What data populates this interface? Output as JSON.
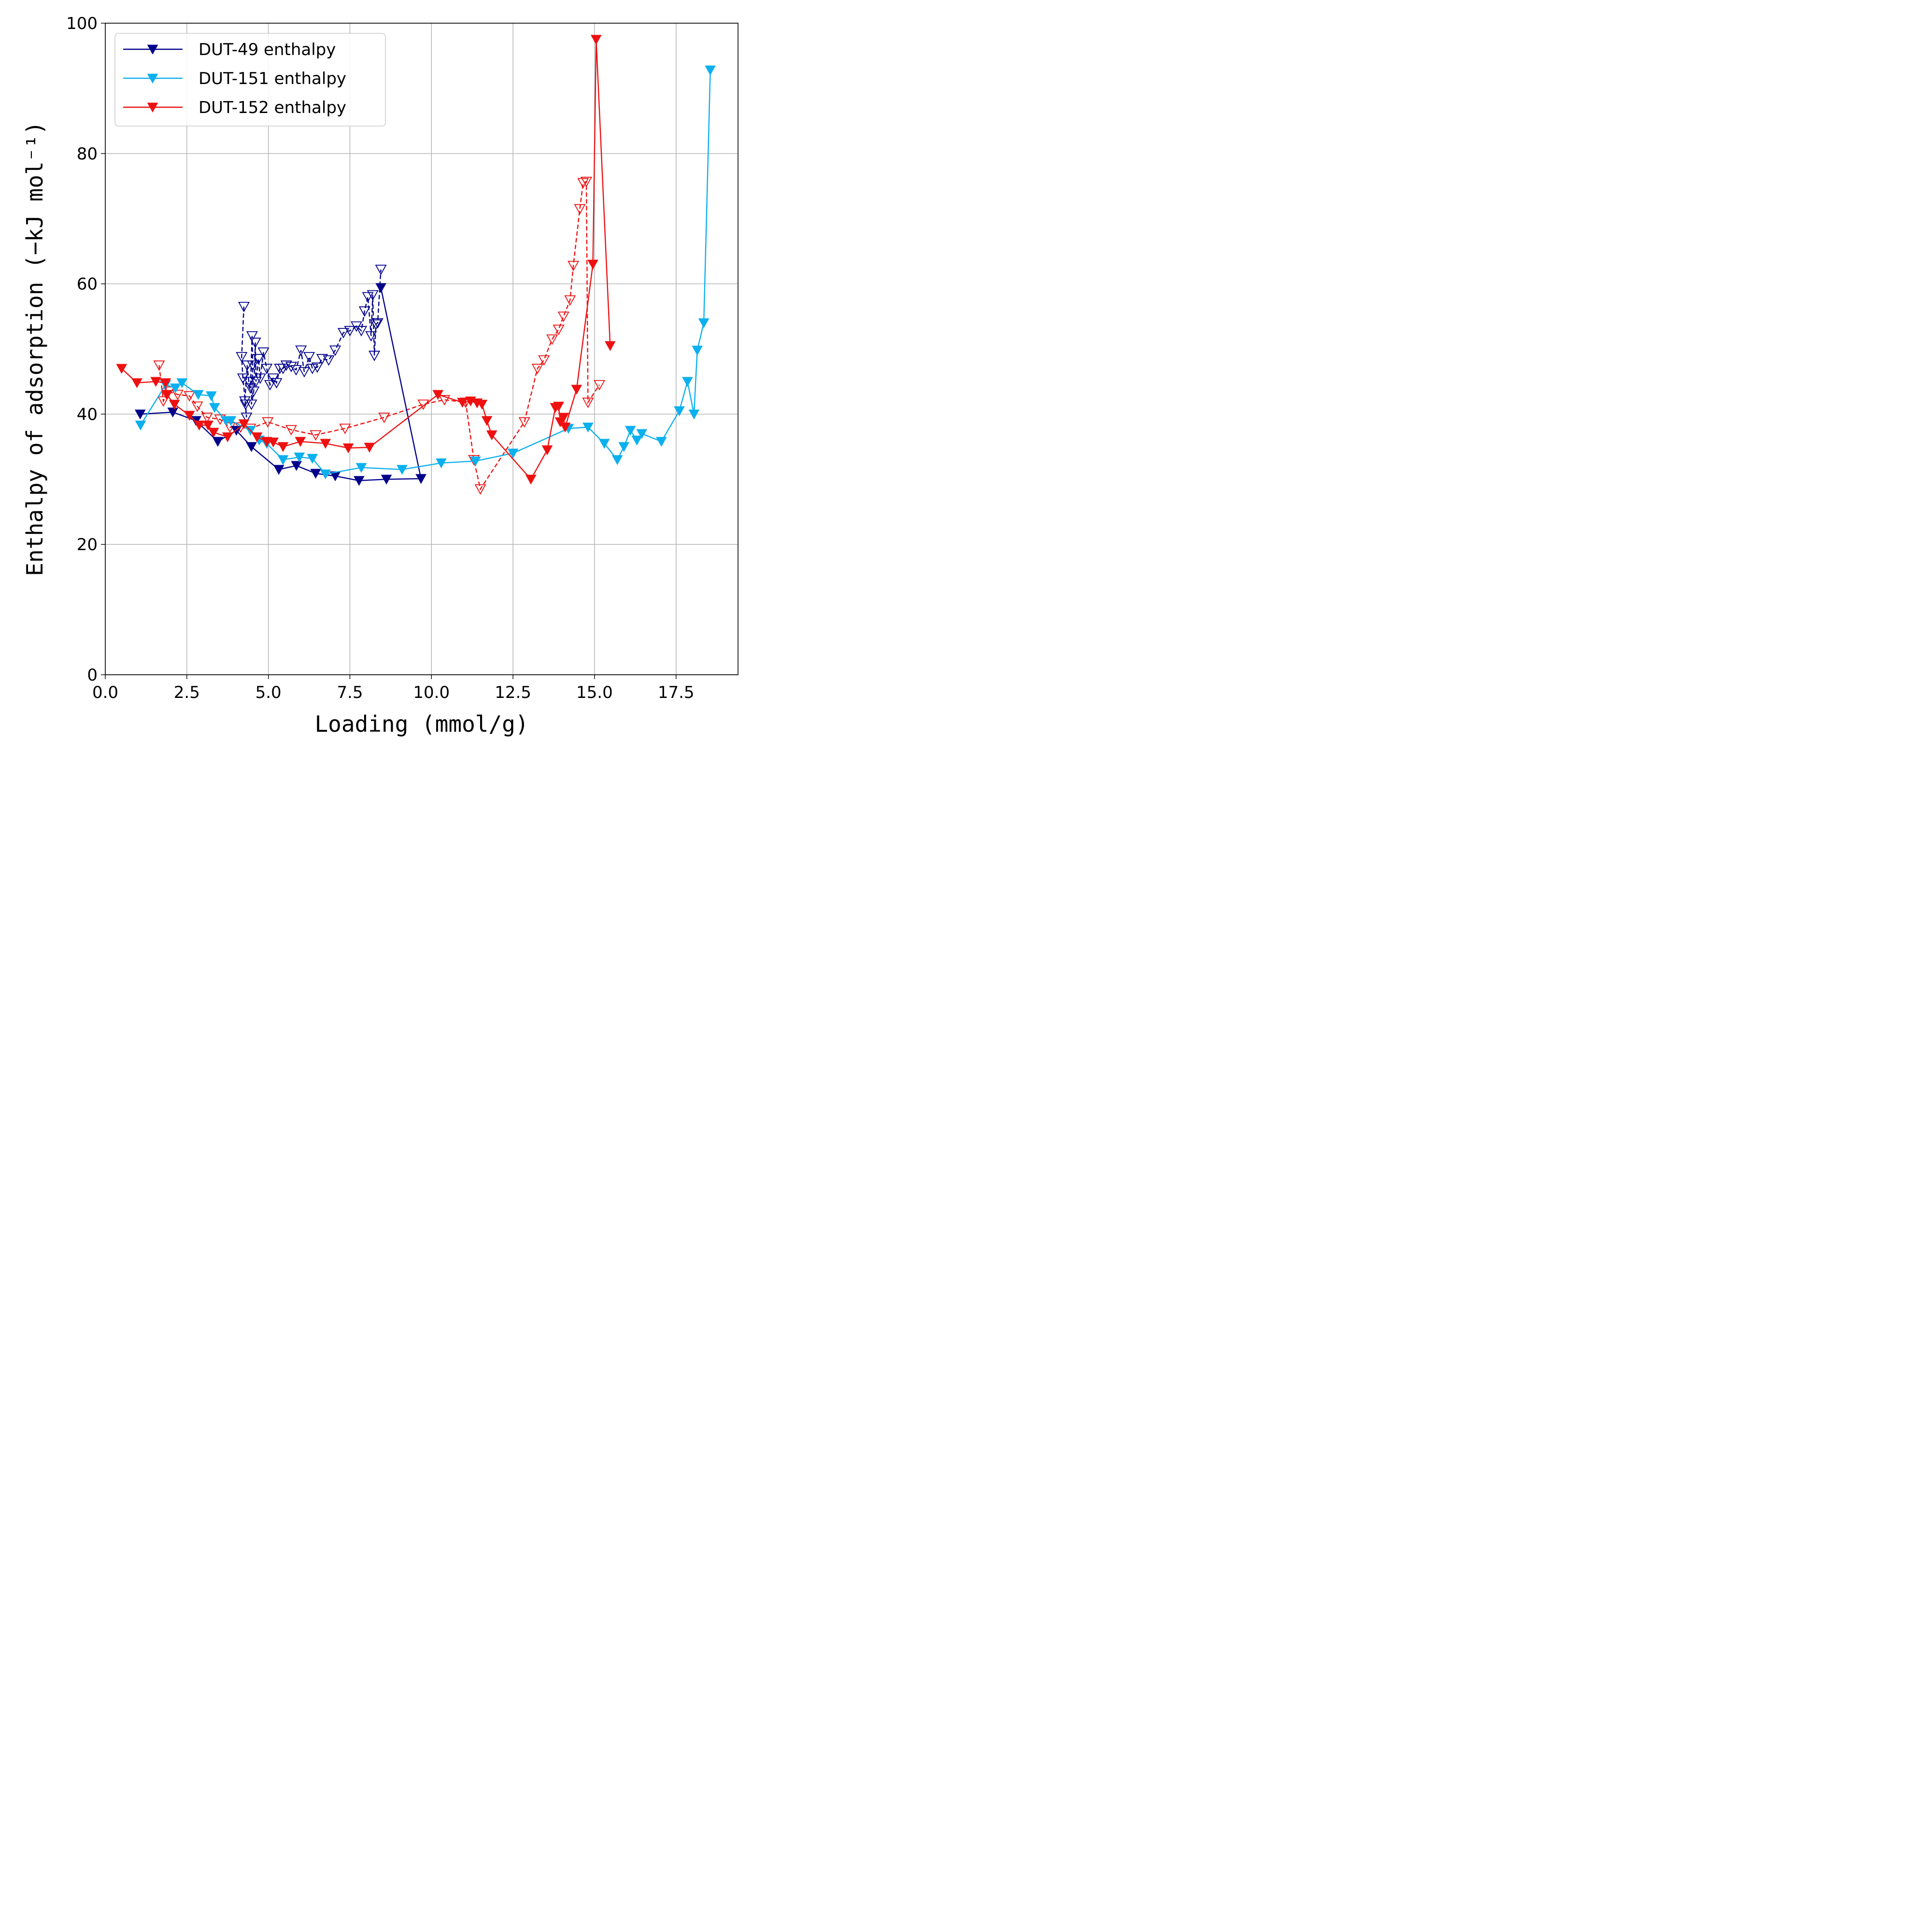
{
  "chart_data": {
    "type": "line",
    "xlabel": "Loading (mmol/g)",
    "ylabel": "Enthalpy of adsorption (−kJ mol⁻¹)",
    "xlim": [
      0,
      19.4
    ],
    "ylim": [
      0,
      100
    ],
    "xticks": [
      "0.0",
      "2.5",
      "5.0",
      "7.5",
      "10.0",
      "12.5",
      "15.0",
      "17.5"
    ],
    "yticks": [
      "0",
      "20",
      "40",
      "60",
      "80",
      "100"
    ],
    "grid": true,
    "legend_position": "top-left",
    "series": [
      {
        "name": "DUT-49 enthalpy",
        "color": "#00008b",
        "marker": "filled-down-triangle",
        "linestyle": "solid",
        "x": [
          1.07,
          2.07,
          2.78,
          3.45,
          4.02,
          4.48,
          5.32,
          5.86,
          6.45,
          7.05,
          7.78,
          8.62,
          9.68,
          8.45
        ],
        "y": [
          40.0,
          40.3,
          39.0,
          35.8,
          37.5,
          35.0,
          31.5,
          32.1,
          30.9,
          30.5,
          29.8,
          30.0,
          30.1,
          59.4
        ]
      },
      {
        "name": "",
        "color": "#00008b",
        "marker": "open-down-triangle",
        "linestyle": "dashed",
        "x": [
          4.25,
          4.18,
          4.22,
          4.3,
          4.33,
          4.28,
          4.35,
          4.4,
          4.45,
          4.5,
          4.52,
          4.48,
          4.55,
          4.6,
          4.62,
          4.7,
          4.75,
          4.85,
          4.95,
          5.05,
          5.15,
          5.25,
          5.35,
          5.45,
          5.55,
          5.7,
          5.85,
          6.0,
          6.1,
          6.25,
          6.35,
          6.5,
          6.65,
          6.85,
          7.05,
          7.3,
          7.5,
          7.7,
          7.85,
          7.95,
          8.05,
          8.15,
          8.2,
          8.25,
          8.3,
          8.35,
          8.45
        ],
        "y": [
          56.5,
          48.8,
          45.5,
          41.5,
          39.5,
          42.0,
          47.5,
          45.0,
          44.0,
          52.0,
          47.5,
          41.5,
          43.5,
          51.0,
          45.0,
          48.5,
          45.5,
          49.5,
          47.0,
          44.5,
          45.5,
          44.8,
          47.0,
          47.0,
          47.5,
          47.3,
          46.8,
          49.8,
          46.5,
          48.8,
          47.0,
          47.2,
          48.5,
          48.3,
          49.8,
          52.5,
          52.8,
          53.5,
          52.8,
          55.8,
          58.0,
          52.0,
          58.3,
          49.0,
          53.8,
          54.0,
          62.2
        ]
      },
      {
        "name": "DUT-151 enthalpy",
        "color": "#0bb0ee",
        "marker": "filled-down-triangle",
        "linestyle": "solid",
        "x": [
          1.08,
          1.85,
          2.15,
          2.35,
          2.85,
          3.25,
          3.35,
          3.7,
          3.85,
          4.45,
          4.72,
          4.95,
          5.45,
          5.95,
          6.35,
          6.75,
          7.85,
          9.1,
          10.3,
          11.35,
          12.5,
          14.2,
          14.8,
          15.3,
          15.7,
          15.9,
          16.1,
          16.3,
          16.45,
          17.05,
          17.6,
          17.85,
          18.05,
          18.15,
          18.35,
          18.55
        ],
        "y": [
          38.3,
          44.5,
          44.0,
          44.8,
          43.0,
          42.8,
          41.0,
          39.0,
          39.0,
          37.5,
          36.0,
          35.5,
          33.0,
          33.4,
          33.2,
          30.8,
          31.8,
          31.5,
          32.5,
          32.8,
          34.0,
          37.8,
          38.0,
          35.5,
          33.0,
          35.0,
          37.5,
          36.0,
          37.0,
          35.8,
          40.5,
          45.0,
          40.0,
          49.8,
          54.0,
          92.8
        ]
      },
      {
        "name": "DUT-152 enthalpy",
        "color": "#ee1010",
        "marker": "filled-down-triangle",
        "linestyle": "solid",
        "x": [
          0.5,
          0.97,
          1.55,
          1.85,
          1.88,
          2.12,
          2.58,
          2.88,
          3.15,
          3.32,
          3.75,
          4.25,
          4.65,
          4.95,
          5.15,
          5.45,
          5.98,
          6.75,
          7.45,
          8.1,
          10.2,
          10.95,
          11.2,
          11.4,
          11.55,
          11.7,
          11.85,
          13.05,
          13.55,
          13.8,
          13.9,
          13.95,
          14.05,
          14.1,
          14.45,
          14.95,
          15.05,
          15.48
        ],
        "y": [
          47.0,
          44.8,
          45.0,
          44.8,
          43.0,
          41.5,
          39.8,
          38.3,
          38.3,
          37.2,
          36.5,
          38.5,
          36.5,
          35.8,
          35.7,
          35.0,
          35.8,
          35.5,
          34.8,
          34.9,
          43.0,
          41.8,
          42.0,
          41.7,
          41.5,
          39.0,
          36.8,
          30.0,
          34.5,
          41.0,
          41.2,
          38.8,
          39.5,
          38.0,
          43.8,
          63.0,
          97.5,
          50.5
        ]
      },
      {
        "name": "",
        "color": "#ee1010",
        "marker": "open-down-triangle",
        "linestyle": "dashed",
        "x": [
          1.65,
          1.78,
          1.95,
          2.22,
          2.58,
          2.82,
          3.12,
          3.52,
          3.82,
          4.15,
          4.45,
          4.98,
          5.7,
          6.45,
          7.35,
          8.55,
          9.75,
          10.4,
          11.05,
          11.3,
          11.5,
          12.85,
          13.25,
          13.45,
          13.7,
          13.9,
          14.05,
          14.25,
          14.35,
          14.55,
          14.65,
          14.75,
          14.8,
          15.15
        ],
        "y": [
          47.5,
          42.0,
          43.5,
          43.0,
          42.8,
          41.2,
          39.5,
          39.2,
          38.0,
          38.0,
          37.8,
          38.8,
          37.6,
          36.8,
          37.8,
          39.5,
          41.5,
          42.2,
          41.8,
          33.0,
          28.5,
          38.8,
          47.0,
          48.3,
          51.5,
          53.0,
          55.0,
          57.5,
          62.8,
          71.5,
          75.5,
          75.7,
          41.8,
          44.5
        ]
      }
    ]
  }
}
